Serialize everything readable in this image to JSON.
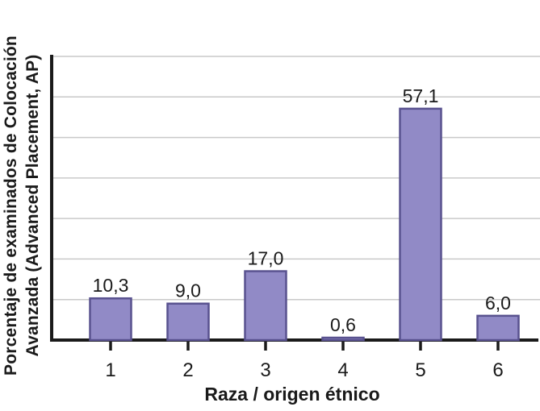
{
  "figure": {
    "y_axis_label_line1": "Porcentaje de examinados de Colocación",
    "y_axis_label_line2": "Avanzada (Advanced Placement, AP)",
    "x_axis_label": "Raza / origen étnico"
  },
  "colors": {
    "bar_fill": "#918AC6",
    "bar_border": "#59528F",
    "gridline": "#C9C9C9",
    "axis": "#1A1A1A",
    "text": "#1A1A1A",
    "background": "#FFFFFF"
  },
  "chart_data": {
    "type": "bar",
    "title": "",
    "categories": [
      "1",
      "2",
      "3",
      "4",
      "5",
      "6"
    ],
    "values": [
      10.3,
      9.0,
      17.0,
      0.6,
      57.1,
      6.0
    ],
    "value_labels": [
      "10,3",
      "9,0",
      "17,0",
      "0,6",
      "57,1",
      "6,0"
    ],
    "xlabel": "Raza / origen étnico",
    "ylabel": "Porcentaje de examinados de Colocación Avanzada (Advanced Placement, AP)",
    "ylim": [
      0,
      70
    ],
    "gridline_step": 10,
    "grid": true,
    "y_tick_labels_shown": false,
    "legend": false
  }
}
